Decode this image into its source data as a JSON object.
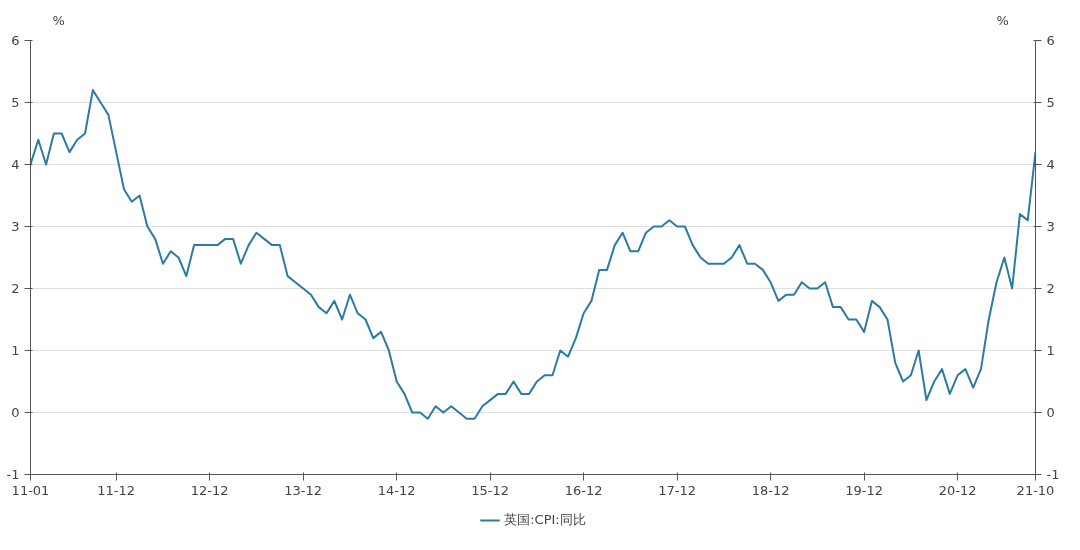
{
  "chart_data": {
    "type": "line",
    "xlabel": null,
    "ylabel": "%",
    "y2label": "%",
    "x": [
      "2011-01",
      "2011-02",
      "2011-03",
      "2011-04",
      "2011-05",
      "2011-06",
      "2011-07",
      "2011-08",
      "2011-09",
      "2011-10",
      "2011-11",
      "2011-12",
      "2012-01",
      "2012-02",
      "2012-03",
      "2012-04",
      "2012-05",
      "2012-06",
      "2012-07",
      "2012-08",
      "2012-09",
      "2012-10",
      "2012-11",
      "2012-12",
      "2013-01",
      "2013-02",
      "2013-03",
      "2013-04",
      "2013-05",
      "2013-06",
      "2013-07",
      "2013-08",
      "2013-09",
      "2013-10",
      "2013-11",
      "2013-12",
      "2014-01",
      "2014-02",
      "2014-03",
      "2014-04",
      "2014-05",
      "2014-06",
      "2014-07",
      "2014-08",
      "2014-09",
      "2014-10",
      "2014-11",
      "2014-12",
      "2015-01",
      "2015-02",
      "2015-03",
      "2015-04",
      "2015-05",
      "2015-06",
      "2015-07",
      "2015-08",
      "2015-09",
      "2015-10",
      "2015-11",
      "2015-12",
      "2016-01",
      "2016-02",
      "2016-03",
      "2016-04",
      "2016-05",
      "2016-06",
      "2016-07",
      "2016-08",
      "2016-09",
      "2016-10",
      "2016-11",
      "2016-12",
      "2017-01",
      "2017-02",
      "2017-03",
      "2017-04",
      "2017-05",
      "2017-06",
      "2017-07",
      "2017-08",
      "2017-09",
      "2017-10",
      "2017-11",
      "2017-12",
      "2018-01",
      "2018-02",
      "2018-03",
      "2018-04",
      "2018-05",
      "2018-06",
      "2018-07",
      "2018-08",
      "2018-09",
      "2018-10",
      "2018-11",
      "2018-12",
      "2019-01",
      "2019-02",
      "2019-03",
      "2019-04",
      "2019-05",
      "2019-06",
      "2019-07",
      "2019-08",
      "2019-09",
      "2019-10",
      "2019-11",
      "2019-12",
      "2020-01",
      "2020-02",
      "2020-03",
      "2020-04",
      "2020-05",
      "2020-06",
      "2020-07",
      "2020-08",
      "2020-09",
      "2020-10",
      "2020-11",
      "2020-12",
      "2021-01",
      "2021-02",
      "2021-03",
      "2021-04",
      "2021-05",
      "2021-06",
      "2021-07",
      "2021-08",
      "2021-09",
      "2021-10"
    ],
    "series": [
      {
        "name": "英国:CPI:同比",
        "color": "#2b7ba3",
        "values": [
          4.0,
          4.4,
          4.0,
          4.5,
          4.5,
          4.2,
          4.4,
          4.5,
          5.2,
          5.0,
          4.8,
          4.2,
          3.6,
          3.4,
          3.5,
          3.0,
          2.8,
          2.4,
          2.6,
          2.5,
          2.2,
          2.7,
          2.7,
          2.7,
          2.7,
          2.8,
          2.8,
          2.4,
          2.7,
          2.9,
          2.8,
          2.7,
          2.7,
          2.2,
          2.1,
          2.0,
          1.9,
          1.7,
          1.6,
          1.8,
          1.5,
          1.9,
          1.6,
          1.5,
          1.2,
          1.3,
          1.0,
          0.5,
          0.3,
          0.0,
          0.0,
          -0.1,
          0.1,
          0.0,
          0.1,
          0.0,
          -0.1,
          -0.1,
          0.1,
          0.2,
          0.3,
          0.3,
          0.5,
          0.3,
          0.3,
          0.5,
          0.6,
          0.6,
          1.0,
          0.9,
          1.2,
          1.6,
          1.8,
          2.3,
          2.3,
          2.7,
          2.9,
          2.6,
          2.6,
          2.9,
          3.0,
          3.0,
          3.1,
          3.0,
          3.0,
          2.7,
          2.5,
          2.4,
          2.4,
          2.4,
          2.5,
          2.7,
          2.4,
          2.4,
          2.3,
          2.1,
          1.8,
          1.9,
          1.9,
          2.1,
          2.0,
          2.0,
          2.1,
          1.7,
          1.7,
          1.5,
          1.5,
          1.3,
          1.8,
          1.7,
          1.5,
          0.8,
          0.5,
          0.6,
          1.0,
          0.2,
          0.5,
          0.7,
          0.3,
          0.6,
          0.7,
          0.4,
          0.7,
          1.5,
          2.1,
          2.5,
          2.0,
          3.2,
          3.1,
          4.2
        ]
      }
    ],
    "xlim": [
      "2011-01",
      "2021-10"
    ],
    "xticks": [
      {
        "value": "2011-01",
        "label": "11-01"
      },
      {
        "value": "2011-12",
        "label": "11-12"
      },
      {
        "value": "2012-12",
        "label": "12-12"
      },
      {
        "value": "2013-12",
        "label": "13-12"
      },
      {
        "value": "2014-12",
        "label": "14-12"
      },
      {
        "value": "2015-12",
        "label": "15-12"
      },
      {
        "value": "2016-12",
        "label": "16-12"
      },
      {
        "value": "2017-12",
        "label": "17-12"
      },
      {
        "value": "2018-12",
        "label": "18-12"
      },
      {
        "value": "2019-12",
        "label": "19-12"
      },
      {
        "value": "2020-12",
        "label": "20-12"
      },
      {
        "value": "2021-10",
        "label": "21-10"
      }
    ],
    "ylim": [
      -1,
      6
    ],
    "yticks": [
      -1,
      0,
      1,
      2,
      3,
      4,
      5,
      6
    ],
    "y2lim": [
      -1,
      6
    ],
    "y2ticks": [
      -1,
      0,
      1,
      2,
      3,
      4,
      5,
      6
    ],
    "grid": "y",
    "legend": "bottom",
    "marker": "none",
    "line_style": "solid"
  }
}
